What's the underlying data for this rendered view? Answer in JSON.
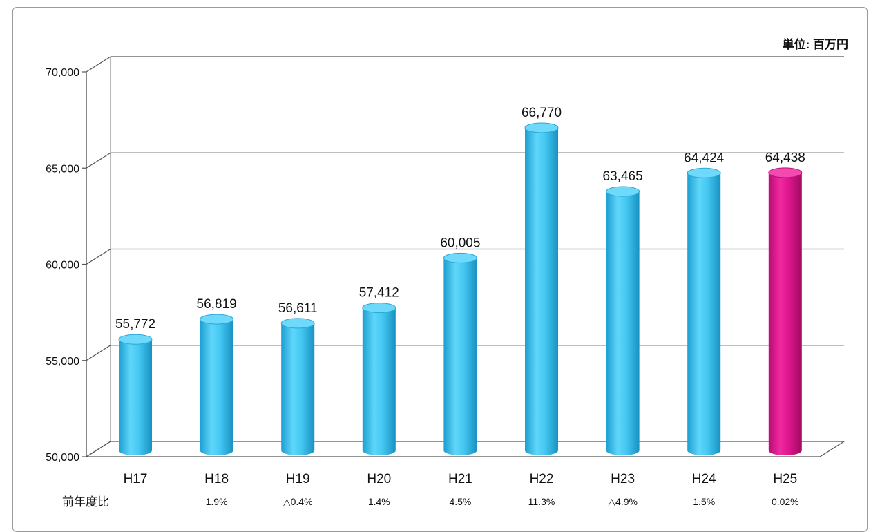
{
  "chart_data": {
    "type": "bar",
    "unit_label": "単位: 百万円",
    "categories": [
      "H17",
      "H18",
      "H19",
      "H20",
      "H21",
      "H22",
      "H23",
      "H24",
      "H25"
    ],
    "values": [
      55772,
      56819,
      56611,
      57412,
      60005,
      66770,
      63465,
      64424,
      64438
    ],
    "value_labels": [
      "55,772",
      "56,819",
      "56,611",
      "57,412",
      "60,005",
      "66,770",
      "63,465",
      "64,424",
      "64,438"
    ],
    "yoy_row_label": "前年度比",
    "yoy_labels": [
      "",
      "1.9%",
      "△0.4%",
      "1.4%",
      "4.5%",
      "11.3%",
      "△4.9%",
      "1.5%",
      "0.02%"
    ],
    "ylim": [
      50000,
      70000
    ],
    "yticks": [
      50000,
      55000,
      60000,
      65000,
      70000
    ],
    "ytick_labels": [
      "50,000",
      "55,000",
      "60,000",
      "65,000",
      "70,000"
    ],
    "grid": true,
    "colors": {
      "default": "#3cc3ec",
      "highlight": "#e0158f"
    },
    "highlight_category": "H25"
  }
}
